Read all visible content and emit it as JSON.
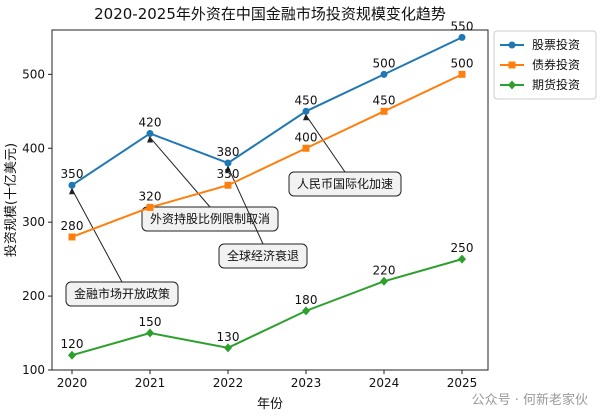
{
  "chart_data": {
    "type": "line",
    "title": "2020-2025年外资在中国金融市场投资规模变化趋势",
    "xlabel": "年份",
    "ylabel": "投资规模(十亿美元)",
    "categories": [
      "2020",
      "2021",
      "2022",
      "2023",
      "2024",
      "2025"
    ],
    "ylim": [
      100,
      560
    ],
    "yticks": [
      "100",
      "200",
      "300",
      "400",
      "500"
    ],
    "grid": false,
    "legend_position": "top-right",
    "series": [
      {
        "name": "股票投资",
        "color": "#1f77b4",
        "marker": "circle",
        "values": [
          350,
          420,
          380,
          450,
          500,
          550
        ]
      },
      {
        "name": "债券投资",
        "color": "#ff7f0e",
        "marker": "square",
        "values": [
          280,
          320,
          350,
          400,
          450,
          500
        ]
      },
      {
        "name": "期货投资",
        "color": "#2ca02c",
        "marker": "diamond",
        "values": [
          120,
          150,
          130,
          180,
          220,
          250
        ]
      }
    ],
    "annotations": [
      {
        "text": "金融市场开放政策",
        "x": "2020",
        "y": 350
      },
      {
        "text": "外资持股比例限制取消",
        "x": "2021",
        "y": 420
      },
      {
        "text": "全球经济衰退",
        "x": "2022",
        "y": 380
      },
      {
        "text": "人民币国际化加速",
        "x": "2023",
        "y": 450
      }
    ]
  },
  "watermark": "公众号 · 何新老家伙"
}
